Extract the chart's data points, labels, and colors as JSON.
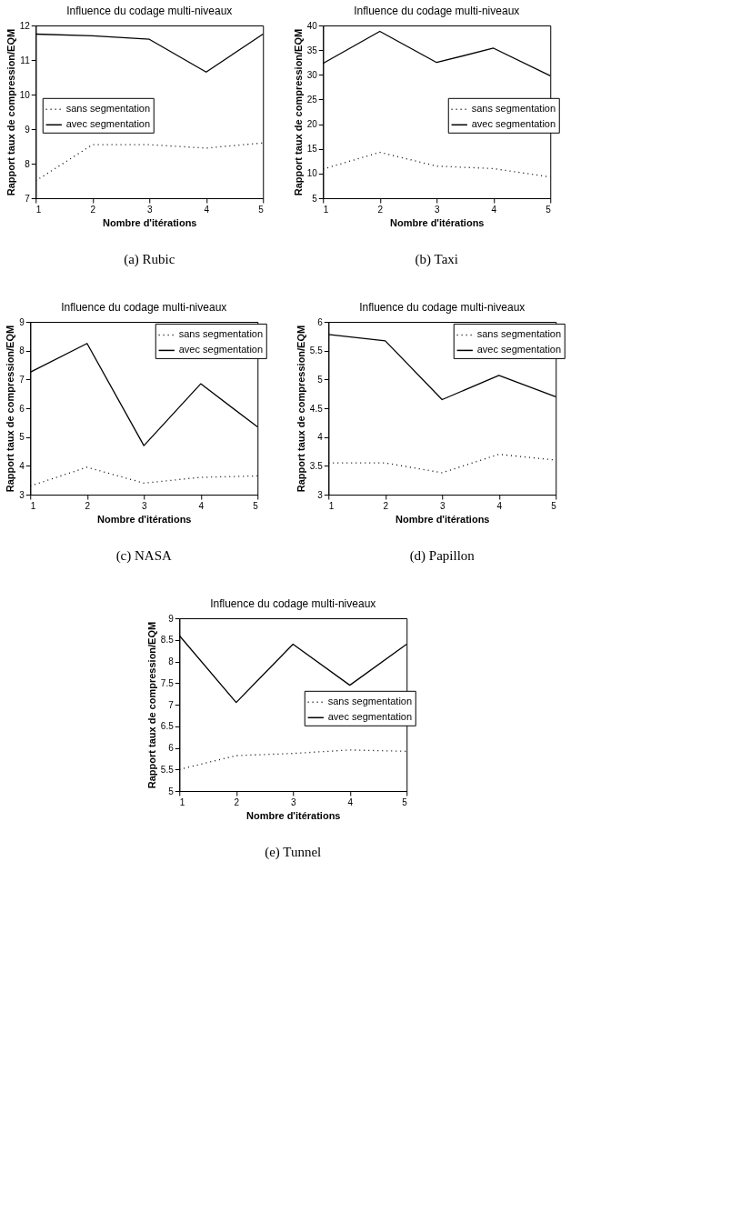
{
  "chart_data": [
    {
      "type": "line",
      "title": "Influence du codage multi-niveaux",
      "xlabel": "Nombre d'itérations",
      "ylabel": "Rapport taux de compression/EQM",
      "x": [
        1,
        2,
        3,
        4,
        5
      ],
      "xlim": [
        1,
        5
      ],
      "xticks": [
        1,
        2,
        3,
        4,
        5
      ],
      "ylim": [
        7,
        12
      ],
      "yticks": [
        7,
        8,
        9,
        10,
        11,
        12
      ],
      "grid": false,
      "legend": "left",
      "annotations": [
        "(a) Rubic"
      ],
      "series": [
        {
          "name": "sans segmentation",
          "color": "#000000",
          "line_style": "dotted",
          "values": [
            7.5,
            8.55,
            8.55,
            8.45,
            8.6
          ]
        },
        {
          "name": "avec segmentation",
          "color": "#000000",
          "line_style": "solid",
          "values": [
            11.75,
            11.7,
            11.6,
            10.65,
            11.75
          ]
        }
      ]
    },
    {
      "type": "line",
      "title": "Influence du codage multi-niveaux",
      "xlabel": "Nombre d'itérations",
      "ylabel": "Rapport taux de compression/EQM",
      "x": [
        1,
        2,
        3,
        4,
        5
      ],
      "xlim": [
        1,
        5
      ],
      "xticks": [
        1,
        2,
        3,
        4,
        5
      ],
      "ylim": [
        5,
        40
      ],
      "yticks": [
        5,
        10,
        15,
        20,
        25,
        30,
        35,
        40
      ],
      "grid": false,
      "legend": "right",
      "annotations": [
        "(b) Taxi"
      ],
      "series": [
        {
          "name": "sans segmentation",
          "color": "#000000",
          "line_style": "dotted",
          "values": [
            10.9,
            14.3,
            11.5,
            11.0,
            9.3
          ]
        },
        {
          "name": "avec segmentation",
          "color": "#000000",
          "line_style": "solid",
          "values": [
            32.3,
            38.8,
            32.5,
            35.4,
            29.8
          ]
        }
      ]
    },
    {
      "type": "line",
      "title": "Influence du codage multi-niveaux",
      "xlabel": "Nombre d'itérations",
      "ylabel": "Rapport taux de compression/EQM",
      "x": [
        1,
        2,
        3,
        4,
        5
      ],
      "xlim": [
        1,
        5
      ],
      "xticks": [
        1,
        2,
        3,
        4,
        5
      ],
      "ylim": [
        3,
        9
      ],
      "yticks": [
        3,
        4,
        5,
        6,
        7,
        8,
        9
      ],
      "grid": false,
      "legend": "top right",
      "annotations": [
        "(c) NASA"
      ],
      "series": [
        {
          "name": "sans segmentation",
          "color": "#000000",
          "line_style": "dotted",
          "values": [
            3.3,
            3.95,
            3.4,
            3.6,
            3.65
          ]
        },
        {
          "name": "avec segmentation",
          "color": "#000000",
          "line_style": "solid",
          "values": [
            7.25,
            8.25,
            4.7,
            6.85,
            5.35
          ]
        }
      ]
    },
    {
      "type": "line",
      "title": "Influence du codage multi-niveaux",
      "xlabel": "Nombre d'itérations",
      "ylabel": "Rapport taux de compression/EQM",
      "x": [
        1,
        2,
        3,
        4,
        5
      ],
      "xlim": [
        1,
        5
      ],
      "xticks": [
        1,
        2,
        3,
        4,
        5
      ],
      "ylim": [
        3,
        6
      ],
      "yticks": [
        3,
        3.5,
        4,
        4.5,
        5,
        5.5,
        6
      ],
      "grid": false,
      "legend": "top right",
      "annotations": [
        "(d) Papillon"
      ],
      "series": [
        {
          "name": "sans segmentation",
          "color": "#000000",
          "line_style": "dotted",
          "values": [
            3.55,
            3.55,
            3.38,
            3.7,
            3.6
          ]
        },
        {
          "name": "avec segmentation",
          "color": "#000000",
          "line_style": "solid",
          "values": [
            5.78,
            5.67,
            4.65,
            5.07,
            4.7
          ]
        }
      ]
    },
    {
      "type": "line",
      "title": "Influence du codage multi-niveaux",
      "xlabel": "Nombre d'itérations",
      "ylabel": "Rapport taux de compression/EQM",
      "x": [
        1,
        2,
        3,
        4,
        5
      ],
      "xlim": [
        1,
        5
      ],
      "xticks": [
        1,
        2,
        3,
        4,
        5
      ],
      "ylim": [
        5,
        9
      ],
      "yticks": [
        5,
        5.5,
        6,
        6.5,
        7,
        7.5,
        8,
        8.5,
        9
      ],
      "grid": false,
      "legend": "right",
      "annotations": [
        "(e) Tunnel"
      ],
      "series": [
        {
          "name": "sans segmentation",
          "color": "#000000",
          "line_style": "dotted",
          "values": [
            5.5,
            5.82,
            5.87,
            5.95,
            5.92
          ]
        },
        {
          "name": "avec segmentation",
          "color": "#000000",
          "line_style": "solid",
          "values": [
            8.6,
            7.05,
            8.4,
            7.45,
            8.4
          ]
        }
      ]
    }
  ]
}
